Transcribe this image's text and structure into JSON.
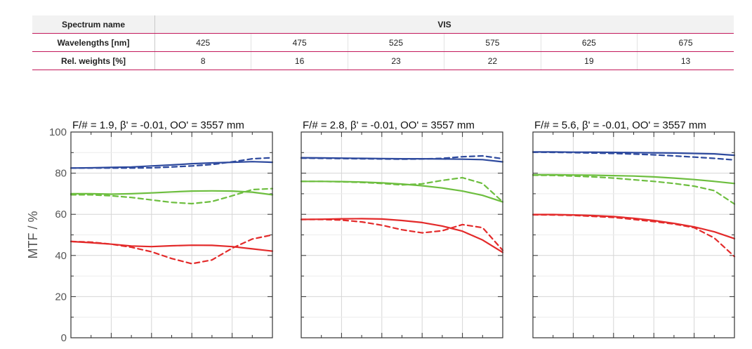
{
  "spectrum": {
    "name_label": "Spectrum name",
    "name_value": "VIS",
    "wavelengths_label": "Wavelengths [nm]",
    "weights_label": "Rel. weights [%]",
    "wavelengths": [
      "425",
      "475",
      "525",
      "575",
      "625",
      "675"
    ],
    "weights": [
      "8",
      "16",
      "23",
      "22",
      "19",
      "13"
    ]
  },
  "colors": {
    "blue": "#2e4a9e",
    "green": "#6dbe3f",
    "red": "#e32a2a"
  },
  "chart_data": [
    {
      "type": "line",
      "title": "F/# = 1.9, β' = -0.01, OO' = 3557 mm",
      "ylabel": "MTF / %",
      "ylim": [
        0,
        100
      ],
      "xlim": [
        0,
        100
      ],
      "yticks": [
        "0",
        "20",
        "40",
        "60",
        "80",
        "100"
      ],
      "grid": true,
      "x": [
        0,
        10,
        20,
        30,
        40,
        50,
        60,
        70,
        80,
        90,
        100
      ],
      "series": [
        {
          "color": "blue",
          "dash": false,
          "values": [
            82.5,
            82.6,
            82.8,
            83.0,
            83.5,
            84.0,
            84.6,
            85.0,
            85.3,
            85.6,
            85.3
          ]
        },
        {
          "color": "blue",
          "dash": true,
          "values": [
            82.5,
            82.5,
            82.5,
            82.5,
            82.6,
            83.0,
            83.5,
            84.2,
            85.5,
            87.0,
            87.5
          ]
        },
        {
          "color": "green",
          "dash": false,
          "values": [
            70.0,
            70.0,
            69.8,
            70.0,
            70.4,
            70.9,
            71.3,
            71.4,
            71.3,
            70.8,
            69.5
          ]
        },
        {
          "color": "green",
          "dash": true,
          "values": [
            69.5,
            69.5,
            69.0,
            68.2,
            67.0,
            65.8,
            65.2,
            66.2,
            69.0,
            72.0,
            72.5
          ]
        },
        {
          "color": "red",
          "dash": false,
          "values": [
            46.8,
            46.2,
            45.5,
            44.6,
            44.3,
            44.7,
            45.0,
            44.9,
            44.3,
            43.2,
            42.1
          ]
        },
        {
          "color": "red",
          "dash": true,
          "values": [
            46.8,
            46.5,
            45.5,
            44.0,
            41.8,
            38.5,
            36.0,
            37.8,
            43.5,
            48.0,
            50.0
          ]
        }
      ]
    },
    {
      "type": "line",
      "title": "F/# = 2.8, β' = -0.01, OO' = 3557 mm",
      "ylabel": "",
      "ylim": [
        0,
        100
      ],
      "xlim": [
        0,
        100
      ],
      "yticks": [],
      "grid": true,
      "x": [
        0,
        10,
        20,
        30,
        40,
        50,
        60,
        70,
        80,
        90,
        100
      ],
      "series": [
        {
          "color": "blue",
          "dash": false,
          "values": [
            87.5,
            87.4,
            87.3,
            87.2,
            87.1,
            87.0,
            87.0,
            86.9,
            86.8,
            86.6,
            85.5
          ]
        },
        {
          "color": "blue",
          "dash": true,
          "values": [
            87.3,
            87.2,
            87.1,
            87.0,
            86.9,
            86.8,
            86.9,
            87.2,
            88.0,
            88.4,
            87.0
          ]
        },
        {
          "color": "green",
          "dash": false,
          "values": [
            76.0,
            76.0,
            75.9,
            75.7,
            75.3,
            74.7,
            73.9,
            72.8,
            71.3,
            69.2,
            66.0
          ]
        },
        {
          "color": "green",
          "dash": true,
          "values": [
            76.0,
            76.0,
            75.8,
            75.5,
            75.0,
            74.3,
            74.8,
            76.5,
            77.8,
            75.0,
            66.0
          ]
        },
        {
          "color": "red",
          "dash": false,
          "values": [
            57.5,
            57.6,
            57.8,
            57.9,
            57.7,
            57.0,
            56.0,
            54.3,
            51.8,
            47.5,
            41.5
          ]
        },
        {
          "color": "red",
          "dash": true,
          "values": [
            57.5,
            57.5,
            57.2,
            56.3,
            54.7,
            52.5,
            51.0,
            52.0,
            55.0,
            53.5,
            42.5
          ]
        }
      ]
    },
    {
      "type": "line",
      "title": "F/# = 5.6, β' = -0.01, OO' = 3557 mm",
      "ylabel": "",
      "ylim": [
        0,
        100
      ],
      "xlim": [
        0,
        100
      ],
      "yticks": [],
      "grid": true,
      "x": [
        0,
        10,
        20,
        30,
        40,
        50,
        60,
        70,
        80,
        90,
        100
      ],
      "series": [
        {
          "color": "blue",
          "dash": false,
          "values": [
            90.3,
            90.3,
            90.2,
            90.2,
            90.1,
            90.0,
            89.9,
            89.8,
            89.6,
            89.4,
            88.7
          ]
        },
        {
          "color": "blue",
          "dash": true,
          "values": [
            90.2,
            90.1,
            90.0,
            89.8,
            89.6,
            89.3,
            88.9,
            88.4,
            87.8,
            87.2,
            86.4
          ]
        },
        {
          "color": "green",
          "dash": false,
          "values": [
            79.2,
            79.2,
            79.1,
            79.0,
            78.8,
            78.6,
            78.2,
            77.6,
            76.9,
            76.0,
            75.0
          ]
        },
        {
          "color": "green",
          "dash": true,
          "values": [
            79.0,
            78.9,
            78.6,
            78.2,
            77.6,
            76.8,
            76.0,
            75.0,
            73.7,
            71.5,
            65.0
          ]
        },
        {
          "color": "red",
          "dash": false,
          "values": [
            59.9,
            59.9,
            59.7,
            59.4,
            58.9,
            58.1,
            57.0,
            55.6,
            53.9,
            51.5,
            48.2
          ]
        },
        {
          "color": "red",
          "dash": true,
          "values": [
            59.8,
            59.7,
            59.5,
            59.0,
            58.5,
            57.5,
            56.5,
            55.3,
            53.5,
            48.5,
            39.5
          ]
        }
      ]
    }
  ]
}
